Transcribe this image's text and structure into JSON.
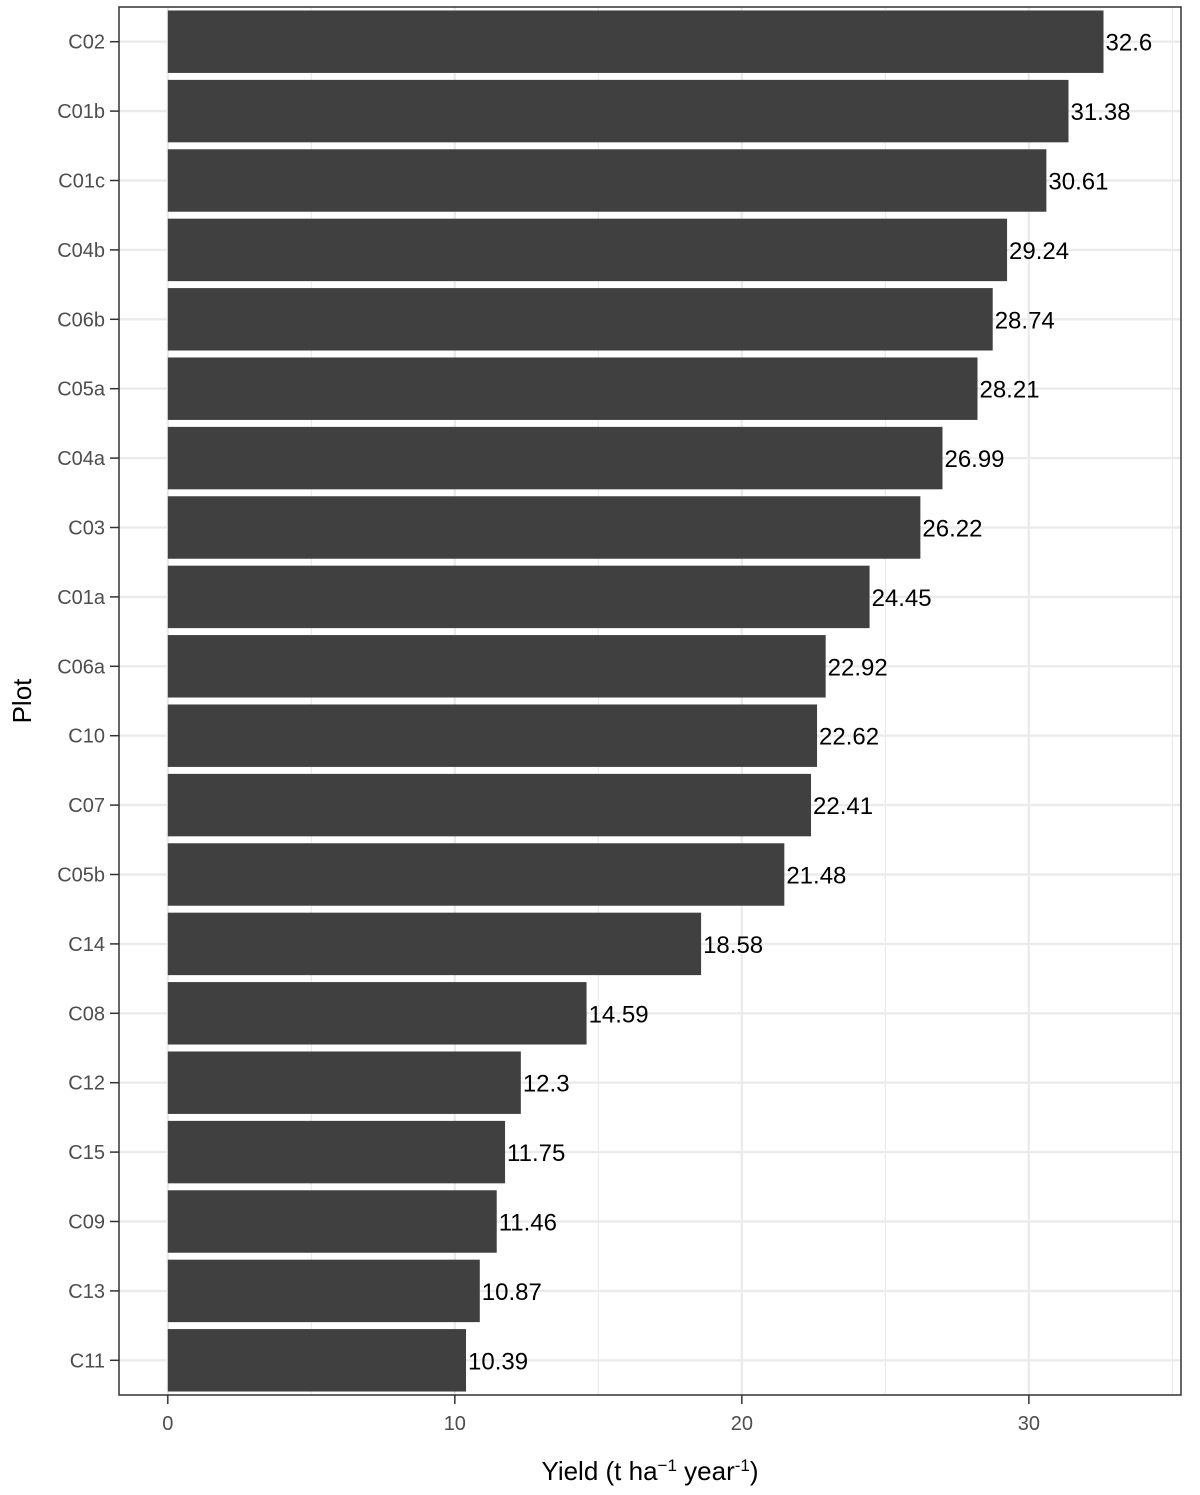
{
  "chart_data": {
    "type": "bar",
    "orientation": "horizontal",
    "categories": [
      "C02",
      "C01b",
      "C01c",
      "C04b",
      "C06b",
      "C05a",
      "C04a",
      "C03",
      "C01a",
      "C06a",
      "C10",
      "C07",
      "C05b",
      "C14",
      "C08",
      "C12",
      "C15",
      "C09",
      "C13",
      "C11"
    ],
    "values": [
      32.6,
      31.38,
      30.61,
      29.24,
      28.74,
      28.21,
      26.99,
      26.22,
      24.45,
      22.92,
      22.62,
      22.41,
      21.48,
      18.58,
      14.59,
      12.3,
      11.75,
      11.46,
      10.87,
      10.39
    ],
    "data_labels": [
      "32.6",
      "31.38",
      "30.61",
      "29.24",
      "28.74",
      "28.21",
      "26.99",
      "26.22",
      "24.45",
      "22.92",
      "22.62",
      "22.41",
      "21.48",
      "18.58",
      "14.59",
      "12.3",
      "11.75",
      "11.46",
      "10.87",
      "10.39"
    ],
    "xlabel": {
      "pre": "Yield (t ha",
      "sup1": "−1",
      "mid": " year",
      "sup2": "-1",
      "post": ")"
    },
    "ylabel": "Plot",
    "xlim": [
      -1.7,
      35.3
    ],
    "x_ticks": [
      0,
      10,
      20,
      30
    ],
    "x_tick_labels": [
      "0",
      "10",
      "20",
      "30"
    ],
    "grid": true,
    "bar_color": "#404040",
    "grid_color": "#ebebeb",
    "panel_border_color": "#333333"
  }
}
